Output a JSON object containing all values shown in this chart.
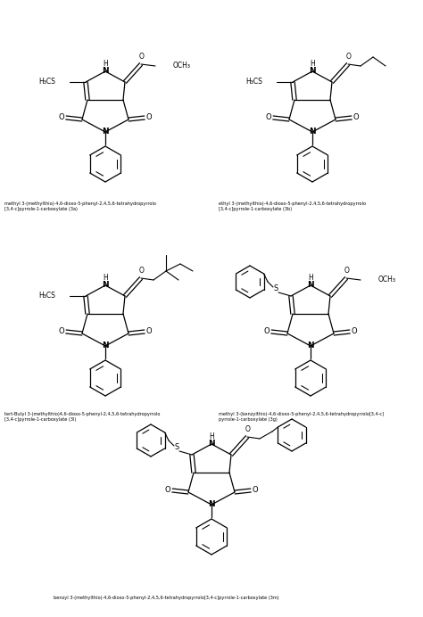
{
  "bg_color": "#ffffff",
  "label_1a": "methyl 3-(methylthio)-4,6-dioxo-5-phenyl-2,4,5,6-tetrahydropyrrolo\n[3,4-c]pyrrole-1-carboxylate (3a)",
  "label_1b": "ethyl 3-(methylthio)-4,6-dioxo-5-phenyl-2,4,5,6-tetrahydropyrrolo\n[3,4-c]pyrrole-1-carboxylate (3b)",
  "label_2a": "tert-Butyl 3-(methylthio)4,6-dioxo-5-phenyl-2,4,5,6-tetrahydropyrrolo\n[3,4-c]pyrrole-1-carboxylate (3l)",
  "label_2b": "methyl 3-(benzylthio)-4,6-dioxo-5-phenyl-2,4,5,6-tetrahydropyrrolo[3,4-c]\npyrrole-1-carboxylate (3g)",
  "label_3": "benzyl 3-(methylthio)-4,6-dioxo-5-phenyl-2,4,5,6-tetrahydropyrrolo[3,4-c]pyrrole-1-carboxylate (3m)"
}
